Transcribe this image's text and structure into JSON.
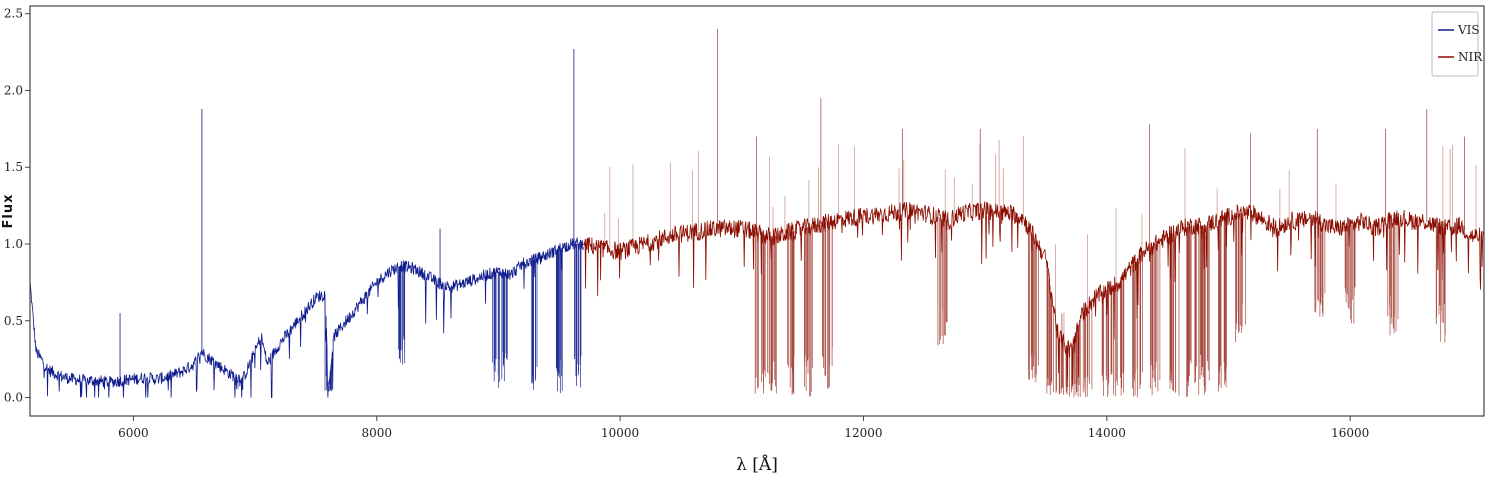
{
  "chart_data": {
    "type": "line",
    "title": "",
    "xlabel": "λ [Å]",
    "ylabel": "Flux",
    "xlim": [
      5150,
      17100
    ],
    "ylim": [
      -0.12,
      2.55
    ],
    "xticks": [
      6000,
      8000,
      10000,
      12000,
      14000,
      16000
    ],
    "yticks": [
      0.0,
      0.5,
      1.0,
      1.5,
      2.0,
      2.5
    ],
    "xtick_labels": [
      "6000",
      "8000",
      "10000",
      "12000",
      "14000",
      "16000"
    ],
    "ytick_labels": [
      "0.0",
      "0.5",
      "1.0",
      "1.5",
      "2.0",
      "2.5"
    ],
    "grid": false,
    "legend": {
      "position": "top-right"
    },
    "series": [
      {
        "name": "VIS",
        "color": "#0d1a8c",
        "x": [
          5150,
          5200,
          5300,
          5400,
          5500,
          5600,
          5700,
          5800,
          5900,
          6000,
          6100,
          6200,
          6300,
          6400,
          6500,
          6560,
          6600,
          6700,
          6800,
          6900,
          7000,
          7050,
          7100,
          7200,
          7300,
          7400,
          7500,
          7580,
          7600,
          7650,
          7700,
          7800,
          7900,
          8000,
          8100,
          8200,
          8300,
          8400,
          8500,
          8600,
          8700,
          8800,
          8900,
          9000,
          9100,
          9200,
          9300,
          9400,
          9500,
          9600,
          9700
        ],
        "y": [
          0.75,
          0.3,
          0.18,
          0.14,
          0.12,
          0.11,
          0.11,
          0.1,
          0.11,
          0.12,
          0.13,
          0.12,
          0.14,
          0.17,
          0.22,
          0.3,
          0.27,
          0.21,
          0.15,
          0.12,
          0.3,
          0.4,
          0.22,
          0.35,
          0.45,
          0.55,
          0.65,
          0.68,
          0.05,
          0.4,
          0.45,
          0.55,
          0.65,
          0.75,
          0.82,
          0.86,
          0.84,
          0.8,
          0.75,
          0.72,
          0.74,
          0.77,
          0.8,
          0.82,
          0.8,
          0.87,
          0.9,
          0.93,
          0.97,
          1.0,
          1.0
        ],
        "spikes": [
          {
            "x": 6563,
            "y": 1.88
          },
          {
            "x": 9620,
            "y": 2.27
          },
          {
            "x": 8520,
            "y": 1.1
          },
          {
            "x": 5890,
            "y": 0.55
          }
        ],
        "dips": [
          {
            "x": 6870,
            "y": 0.05
          },
          {
            "x": 7600,
            "y": 0.03
          },
          {
            "x": 8200,
            "y": 0.2
          },
          {
            "x": 8980,
            "y": 0.05
          },
          {
            "x": 9050,
            "y": 0.1
          },
          {
            "x": 9300,
            "y": 0.02
          },
          {
            "x": 9500,
            "y": 0.02
          },
          {
            "x": 9650,
            "y": 0.05
          }
        ]
      },
      {
        "name": "NIR",
        "color": "#8b0d00",
        "x": [
          9700,
          9800,
          10000,
          10200,
          10400,
          10600,
          10800,
          11000,
          11100,
          11200,
          11300,
          11400,
          11500,
          11600,
          11700,
          11800,
          11900,
          12000,
          12200,
          12400,
          12600,
          12700,
          12800,
          13000,
          13200,
          13300,
          13400,
          13500,
          13600,
          13700,
          13800,
          13900,
          14000,
          14100,
          14200,
          14300,
          14400,
          14500,
          14600,
          14700,
          14800,
          14900,
          15000,
          15100,
          15200,
          15300,
          15400,
          15500,
          15600,
          15700,
          15800,
          15900,
          16000,
          16100,
          16200,
          16300,
          16400,
          16500,
          16600,
          16700,
          16800,
          16900,
          17000,
          17100
        ],
        "y": [
          1.0,
          0.98,
          0.95,
          1.0,
          1.05,
          1.08,
          1.1,
          1.1,
          1.08,
          1.05,
          1.05,
          1.08,
          1.1,
          1.12,
          1.14,
          1.16,
          1.17,
          1.18,
          1.2,
          1.22,
          1.18,
          1.15,
          1.2,
          1.22,
          1.2,
          1.18,
          1.05,
          0.9,
          0.4,
          0.3,
          0.55,
          0.65,
          0.7,
          0.75,
          0.85,
          0.95,
          1.0,
          1.05,
          1.1,
          1.12,
          1.12,
          1.15,
          1.18,
          1.2,
          1.2,
          1.15,
          1.1,
          1.15,
          1.15,
          1.18,
          1.12,
          1.1,
          1.12,
          1.15,
          1.1,
          1.15,
          1.18,
          1.15,
          1.15,
          1.12,
          1.1,
          1.12,
          1.05,
          1.05
        ],
        "spikes": [
          {
            "x": 10800,
            "y": 2.4
          },
          {
            "x": 11650,
            "y": 1.95
          },
          {
            "x": 11120,
            "y": 1.7
          },
          {
            "x": 12320,
            "y": 1.75
          },
          {
            "x": 12960,
            "y": 1.75
          },
          {
            "x": 14350,
            "y": 1.78
          },
          {
            "x": 15180,
            "y": 1.72
          },
          {
            "x": 15730,
            "y": 1.75
          },
          {
            "x": 16290,
            "y": 1.75
          },
          {
            "x": 16630,
            "y": 1.88
          },
          {
            "x": 16940,
            "y": 1.7
          }
        ],
        "dips": [
          {
            "x": 11150,
            "y": 0.0
          },
          {
            "x": 11250,
            "y": 0.0
          },
          {
            "x": 11400,
            "y": 0.0
          },
          {
            "x": 11550,
            "y": 0.0
          },
          {
            "x": 11700,
            "y": 0.05
          },
          {
            "x": 12650,
            "y": 0.3
          },
          {
            "x": 13400,
            "y": 0.1
          },
          {
            "x": 13550,
            "y": 0.0
          },
          {
            "x": 13650,
            "y": 0.0
          },
          {
            "x": 13750,
            "y": 0.0
          },
          {
            "x": 13850,
            "y": 0.0
          },
          {
            "x": 14000,
            "y": 0.0
          },
          {
            "x": 14100,
            "y": 0.0
          },
          {
            "x": 14250,
            "y": 0.0
          },
          {
            "x": 14400,
            "y": 0.0
          },
          {
            "x": 14550,
            "y": 0.0
          },
          {
            "x": 14700,
            "y": 0.0
          },
          {
            "x": 14800,
            "y": 0.0
          },
          {
            "x": 14950,
            "y": 0.0
          },
          {
            "x": 15100,
            "y": 0.35
          },
          {
            "x": 15750,
            "y": 0.4
          },
          {
            "x": 16000,
            "y": 0.45
          },
          {
            "x": 16350,
            "y": 0.4
          },
          {
            "x": 16750,
            "y": 0.35
          }
        ]
      }
    ]
  }
}
